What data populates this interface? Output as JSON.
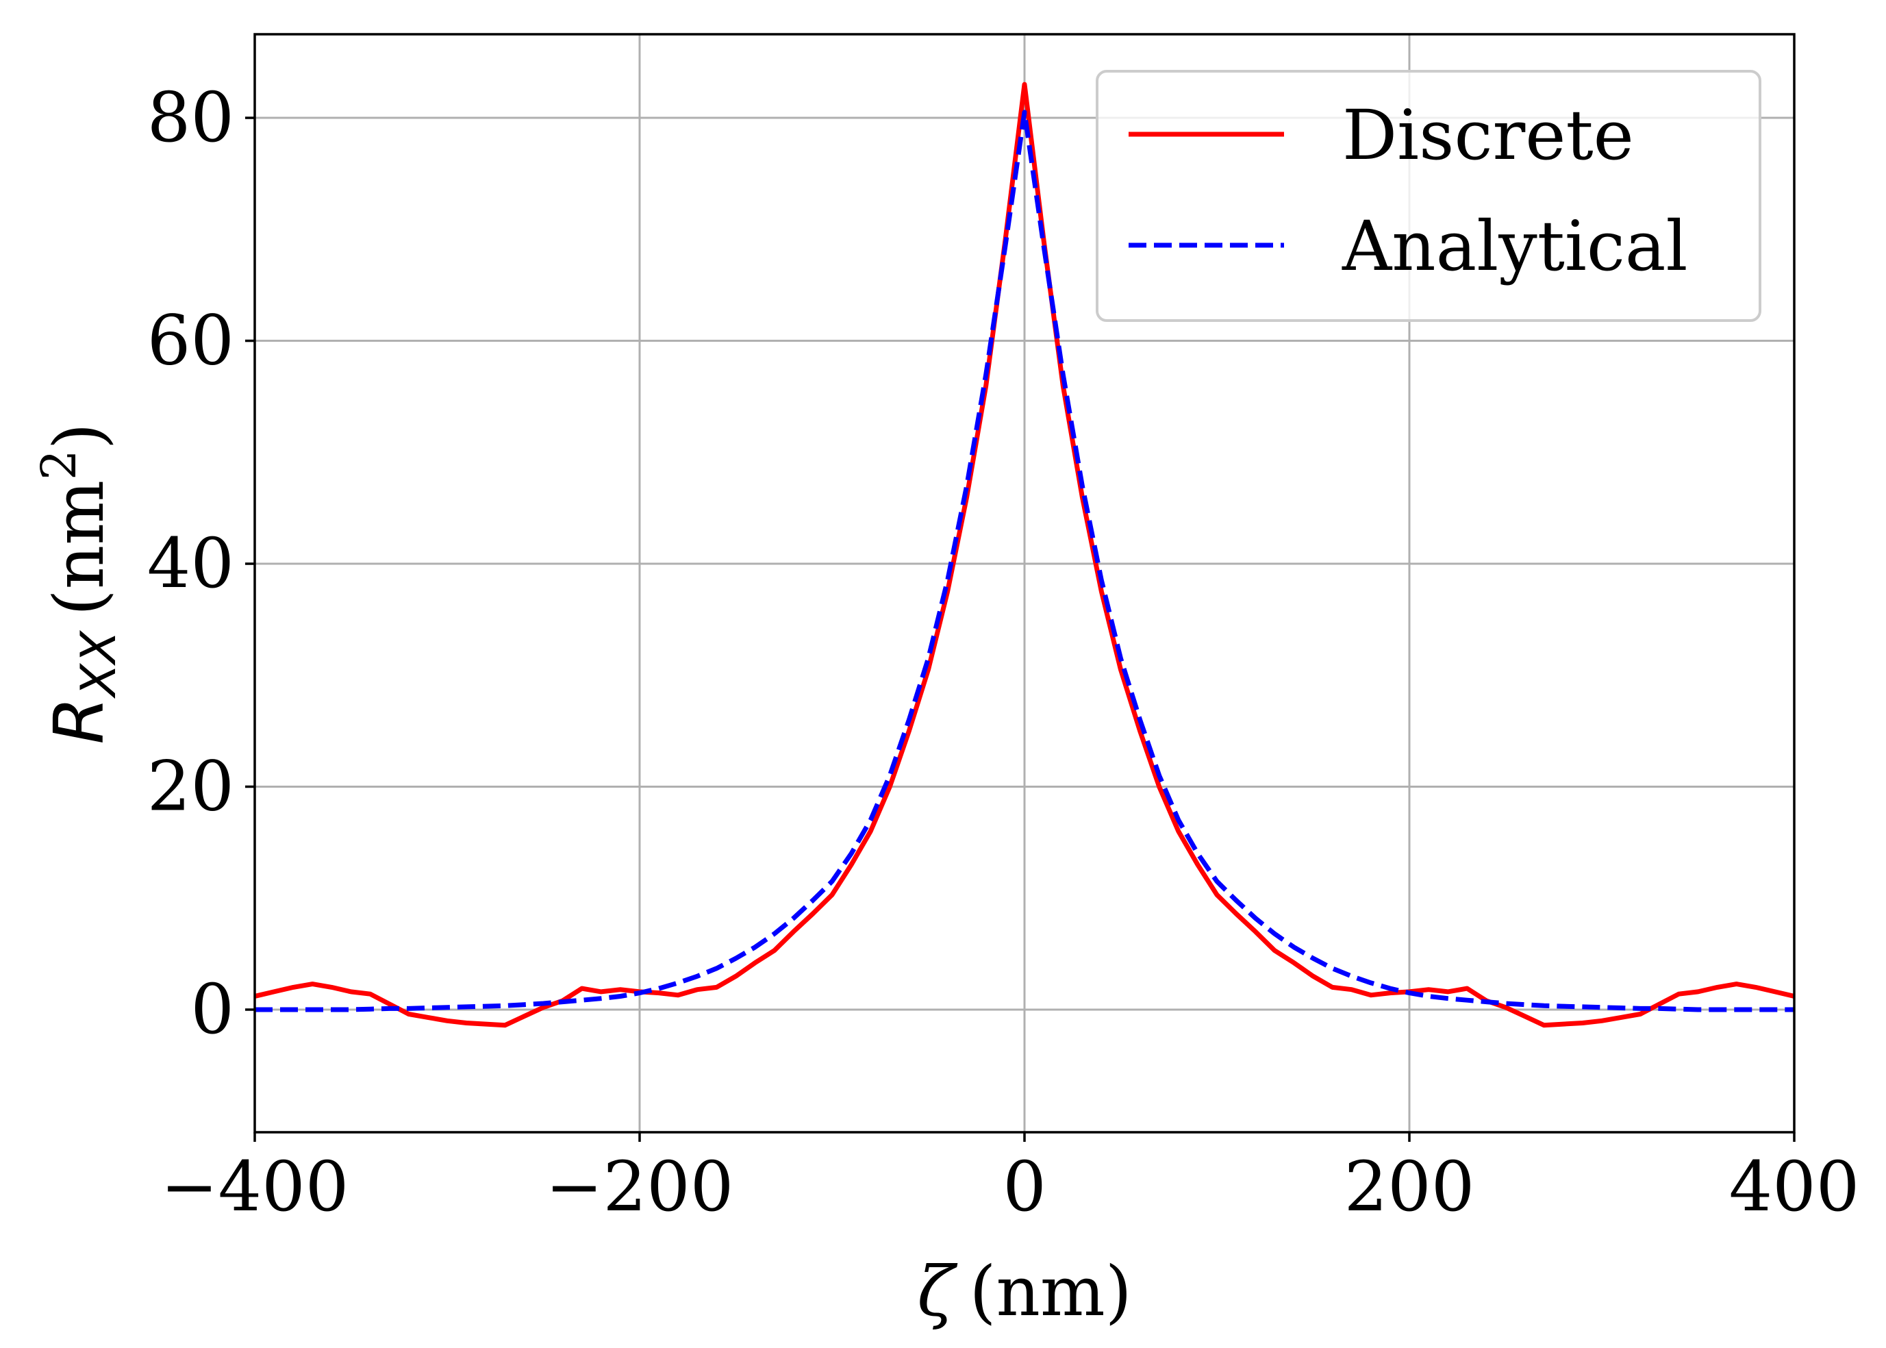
{
  "chart_data": {
    "type": "line",
    "title": "",
    "xlabel": {
      "symbol": "ζ",
      "unit": "(nm)"
    },
    "ylabel": {
      "symbol": "R",
      "subscript": "XX",
      "unit_prefix": "(nm",
      "unit_superscript": "2",
      "unit_suffix": ")"
    },
    "xlim": [
      -400,
      400
    ],
    "ylim": [
      -11,
      87.5
    ],
    "xticks": [
      -400,
      -200,
      0,
      200,
      400
    ],
    "xtick_labels": [
      "−400",
      "−200",
      "0",
      "200",
      "400"
    ],
    "yticks": [
      0,
      20,
      40,
      60,
      80
    ],
    "ytick_labels": [
      "0",
      "20",
      "40",
      "60",
      "80"
    ],
    "grid": true,
    "legend": {
      "placement": "top-right"
    },
    "series": [
      {
        "name": "Discrete",
        "color": "#ff0000",
        "style": "solid",
        "x": [
          -400,
          -390,
          -380,
          -370,
          -360,
          -350,
          -340,
          -330,
          -320,
          -310,
          -300,
          -290,
          -280,
          -270,
          -260,
          -250,
          -240,
          -230,
          -220,
          -210,
          -200,
          -190,
          -180,
          -170,
          -160,
          -150,
          -140,
          -130,
          -120,
          -110,
          -100,
          -90,
          -80,
          -70,
          -60,
          -50,
          -40,
          -30,
          -20,
          -10,
          0,
          10,
          20,
          30,
          40,
          50,
          60,
          70,
          80,
          90,
          100,
          110,
          120,
          130,
          140,
          150,
          160,
          170,
          180,
          190,
          200,
          210,
          220,
          230,
          240,
          250,
          260,
          270,
          280,
          290,
          300,
          310,
          320,
          330,
          340,
          350,
          360,
          370,
          380,
          390,
          400
        ],
        "y": [
          1.2,
          1.6,
          2.0,
          2.3,
          2.0,
          1.6,
          1.4,
          0.5,
          -0.4,
          -0.7,
          -1.0,
          -1.2,
          -1.3,
          -1.4,
          -0.6,
          0.2,
          0.8,
          1.9,
          1.6,
          1.8,
          1.6,
          1.5,
          1.3,
          1.8,
          2.0,
          3.0,
          4.2,
          5.3,
          7.0,
          8.6,
          10.3,
          13.0,
          16.0,
          20.0,
          25.0,
          30.5,
          37.5,
          46.0,
          56.0,
          69.0,
          83.0,
          69.0,
          56.0,
          46.0,
          37.5,
          30.5,
          25.0,
          20.0,
          16.0,
          13.0,
          10.3,
          8.6,
          7.0,
          5.3,
          4.2,
          3.0,
          2.0,
          1.8,
          1.3,
          1.5,
          1.6,
          1.8,
          1.6,
          1.9,
          0.8,
          0.2,
          -0.6,
          -1.4,
          -1.3,
          -1.2,
          -1.0,
          -0.7,
          -0.4,
          0.5,
          1.4,
          1.6,
          2.0,
          2.3,
          2.0,
          1.6,
          1.2
        ]
      },
      {
        "name": "Analytical",
        "color": "#0000ff",
        "style": "dashed",
        "x": [
          -400,
          -390,
          -380,
          -370,
          -360,
          -350,
          -340,
          -330,
          -320,
          -310,
          -300,
          -290,
          -280,
          -270,
          -260,
          -250,
          -240,
          -230,
          -220,
          -210,
          -200,
          -190,
          -180,
          -170,
          -160,
          -150,
          -140,
          -130,
          -120,
          -110,
          -100,
          -90,
          -80,
          -70,
          -60,
          -50,
          -40,
          -30,
          -20,
          -10,
          0,
          10,
          20,
          30,
          40,
          50,
          60,
          70,
          80,
          90,
          100,
          110,
          120,
          130,
          140,
          150,
          160,
          170,
          180,
          190,
          200,
          210,
          220,
          230,
          240,
          250,
          260,
          270,
          280,
          290,
          300,
          310,
          320,
          330,
          340,
          350,
          360,
          370,
          380,
          390,
          400
        ],
        "y": [
          0.0,
          0.0,
          0.0,
          0.0,
          0.0,
          0.0,
          0.05,
          0.1,
          0.1,
          0.15,
          0.2,
          0.25,
          0.3,
          0.35,
          0.45,
          0.55,
          0.7,
          0.85,
          1.0,
          1.2,
          1.5,
          1.9,
          2.4,
          3.0,
          3.7,
          4.6,
          5.6,
          6.8,
          8.2,
          9.8,
          11.5,
          14.0,
          17.0,
          21.0,
          26.0,
          31.5,
          38.5,
          47.0,
          57.0,
          68.5,
          80.5,
          68.5,
          57.0,
          47.0,
          38.5,
          31.5,
          26.0,
          21.0,
          17.0,
          14.0,
          11.5,
          9.8,
          8.2,
          6.8,
          5.6,
          4.6,
          3.7,
          3.0,
          2.4,
          1.9,
          1.5,
          1.2,
          1.0,
          0.85,
          0.7,
          0.55,
          0.45,
          0.35,
          0.3,
          0.25,
          0.2,
          0.15,
          0.1,
          0.1,
          0.05,
          0.0,
          0.0,
          0.0,
          0.0,
          0.0,
          0.0
        ]
      }
    ]
  }
}
